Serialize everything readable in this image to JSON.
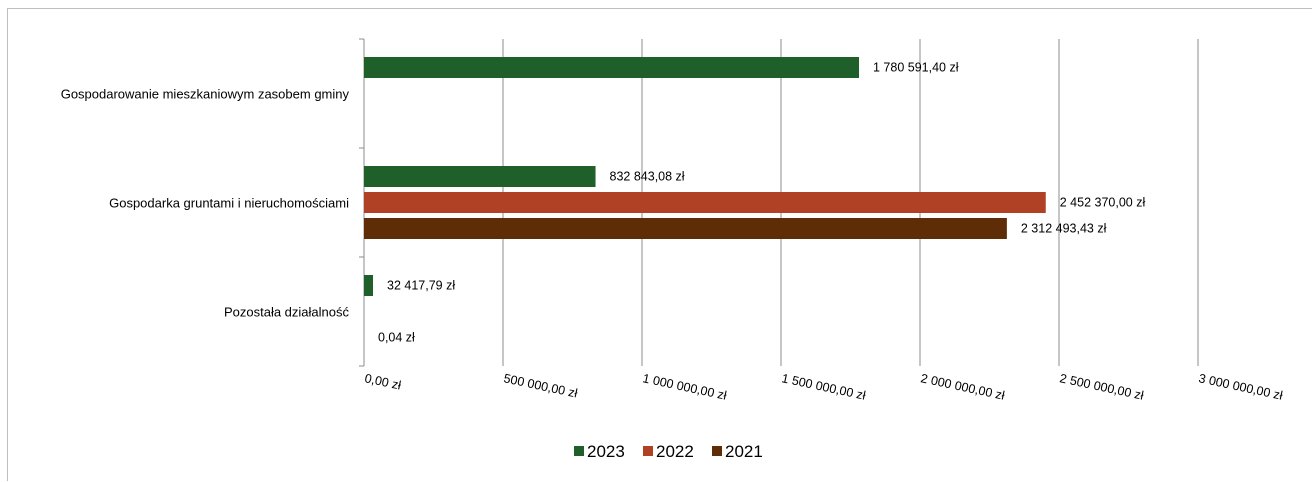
{
  "chart_data": {
    "type": "bar",
    "orientation": "horizontal",
    "categories": [
      "Gospodarowanie mieszkaniowym zasobem gminy",
      "Gospodarka gruntami i nieruchomościami",
      "Pozostała działalność"
    ],
    "series": [
      {
        "name": "2023",
        "color": "#1f5f2a",
        "values": [
          1780591.4,
          832843.08,
          32417.79
        ],
        "labels": [
          "1 780 591,40 zł",
          "832 843,08 zł",
          "32 417,79 zł"
        ]
      },
      {
        "name": "2022",
        "color": "#b04125",
        "values": [
          null,
          2452370.0,
          null
        ],
        "labels": [
          null,
          "2 452 370,00 zł",
          null
        ]
      },
      {
        "name": "2021",
        "color": "#5e2c06",
        "values": [
          null,
          2312493.43,
          0.04
        ],
        "labels": [
          null,
          "2 312 493,43 zł",
          "0,04 zł"
        ]
      }
    ],
    "xlim": [
      0,
      3000000
    ],
    "x_ticks": [
      0,
      500000,
      1000000,
      1500000,
      2000000,
      2500000,
      3000000
    ],
    "x_tick_labels": [
      "0,00 zł",
      "500 000,00 zł",
      "1 000 000,00 zł",
      "1 500 000,00 zł",
      "2 000 000,00 zł",
      "2 500 000,00 zł",
      "3 000 000,00 zł"
    ],
    "grid": "vertical",
    "legend_position": "bottom",
    "title": "",
    "xlabel": "",
    "ylabel": ""
  }
}
